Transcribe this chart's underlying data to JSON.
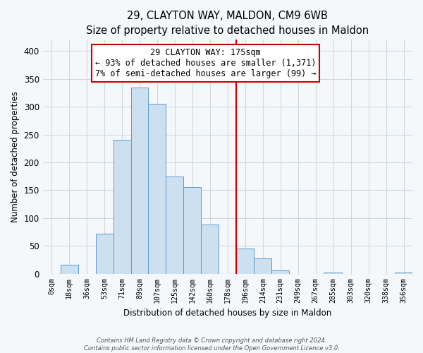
{
  "title": "29, CLAYTON WAY, MALDON, CM9 6WB",
  "subtitle": "Size of property relative to detached houses in Maldon",
  "bar_labels": [
    "0sqm",
    "18sqm",
    "36sqm",
    "53sqm",
    "71sqm",
    "89sqm",
    "107sqm",
    "125sqm",
    "142sqm",
    "160sqm",
    "178sqm",
    "196sqm",
    "214sqm",
    "231sqm",
    "249sqm",
    "267sqm",
    "285sqm",
    "303sqm",
    "320sqm",
    "338sqm",
    "356sqm"
  ],
  "bar_heights": [
    0,
    16,
    0,
    72,
    240,
    334,
    305,
    175,
    155,
    88,
    0,
    45,
    28,
    6,
    0,
    0,
    2,
    0,
    0,
    0,
    2
  ],
  "bar_color": "#cce0f0",
  "bar_edge_color": "#5b9bd5",
  "vline_x": 10.5,
  "vline_color": "#cc0000",
  "ylabel": "Number of detached properties",
  "xlabel": "Distribution of detached houses by size in Maldon",
  "ylim": [
    0,
    420
  ],
  "yticks": [
    0,
    50,
    100,
    150,
    200,
    250,
    300,
    350,
    400
  ],
  "annotation_title": "29 CLAYTON WAY: 175sqm",
  "annotation_line1": "← 93% of detached houses are smaller (1,371)",
  "annotation_line2": "7% of semi-detached houses are larger (99) →",
  "footer_line1": "Contains HM Land Registry data © Crown copyright and database right 2024.",
  "footer_line2": "Contains public sector information licensed under the Open Government Licence v3.0.",
  "background_color": "#f5f8fa",
  "plot_background": "#f5f8fa",
  "grid_color": "#d0d8e0"
}
